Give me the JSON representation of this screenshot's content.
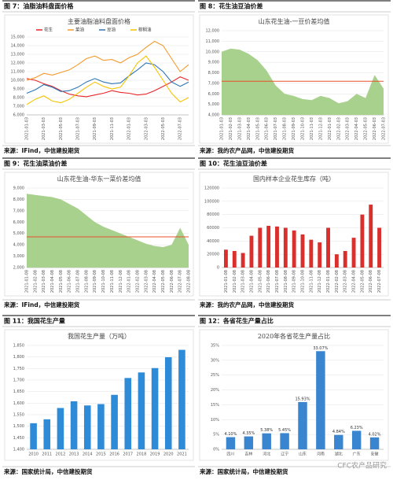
{
  "figures": [
    {
      "heading": "图 7：油脂油料盘面价格",
      "source": "来源：IFind，中信建投期货"
    },
    {
      "heading": "图 8：花生油豆油价差",
      "source": "来源：我的农产品网，中信建投期货"
    },
    {
      "heading": "图 9：花生油菜油价差",
      "source": "来源：IFind，中信建投期货"
    },
    {
      "heading": "图 10：花生油豆油价差",
      "source": "来源：我的农产品网，中信建投期货"
    },
    {
      "heading": "图 11：我国花生产量",
      "source": "来源：国家统计局，中信建投期货"
    },
    {
      "heading": "图 12：各省花生产量占比",
      "source": "来源：国家统计局，中信建投期货"
    }
  ],
  "watermark": "CFC农产品研究",
  "chart_data": [
    {
      "type": "line",
      "title": "主要油脂油料盘面价格",
      "categories": [
        "2021-01-03",
        null,
        "2021-03-03",
        null,
        "2021-05-03",
        null,
        "2021-07-03",
        null,
        "2021-09-03",
        null,
        "2021-11-03",
        null,
        "2022-01-03",
        null,
        "2022-03-03",
        null,
        "2022-05-03",
        null,
        "2022-07-03",
        null
      ],
      "series": [
        {
          "name": "花生",
          "color": "#e8262a",
          "values": [
            10200,
            10000,
            9600,
            9300,
            8800,
            8400,
            8200,
            8100,
            8300,
            8500,
            8800,
            8600,
            8500,
            8300,
            8400,
            8800,
            9300,
            9800,
            10400,
            10000
          ]
        },
        {
          "name": "菜油",
          "color": "#f39a2a",
          "values": [
            10000,
            10300,
            10800,
            10600,
            10900,
            11200,
            11800,
            12500,
            12800,
            12300,
            12400,
            12000,
            12600,
            13000,
            13800,
            14500,
            14000,
            12500,
            11000,
            11800
          ]
        },
        {
          "name": "豆油",
          "color": "#2e75b6",
          "values": [
            8500,
            8900,
            9500,
            9200,
            8700,
            8800,
            9200,
            9800,
            10200,
            9800,
            9600,
            9700,
            10500,
            11200,
            12000,
            11800,
            11000,
            9800,
            9300,
            9800
          ]
        },
        {
          "name": "棕榈油",
          "color": "#f5c400",
          "values": [
            7200,
            7800,
            8200,
            7600,
            7400,
            7800,
            8500,
            9200,
            9800,
            9300,
            9000,
            9200,
            10500,
            12000,
            12800,
            11500,
            10000,
            8500,
            7500,
            8000
          ]
        }
      ],
      "ylim": [
        6000,
        15000
      ],
      "yticks": [
        {
          "value": 6000,
          "label": "6,000"
        },
        {
          "value": 7000,
          "label": "7,000"
        },
        {
          "value": 8000,
          "label": "8,000"
        },
        {
          "value": 9000,
          "label": "9,000"
        },
        {
          "value": 10000,
          "label": "10,000"
        },
        {
          "value": 11000,
          "label": "11,000"
        },
        {
          "value": 12000,
          "label": "12,000"
        },
        {
          "value": 13000,
          "label": "13,000"
        },
        {
          "value": 14000,
          "label": "14,000"
        },
        {
          "value": 15000,
          "label": "15,000"
        }
      ],
      "grid": true,
      "legend": "top"
    },
    {
      "type": "area",
      "title": "山东花生油-一豆价差均值",
      "color": "#a9d18e",
      "categories": [
        "2021-01-03",
        "2021-02-03",
        "2021-03-03",
        "2021-04-03",
        "2021-05-03",
        "2021-06-03",
        "2021-07-03",
        "2021-08-03",
        "2021-09-03",
        "2021-10-03",
        "2021-11-03",
        "2021-12-03",
        "2022-01-03",
        "2022-02-03",
        "2022-03-03",
        "2022-04-03",
        "2022-05-03",
        "2022-06-03",
        "2022-07-03"
      ],
      "values": [
        10000,
        10300,
        10200,
        9800,
        9200,
        8200,
        6800,
        6000,
        5800,
        5500,
        5400,
        5800,
        5600,
        5100,
        5300,
        6000,
        5600,
        7800,
        6500
      ],
      "ylim": [
        4000,
        12000
      ],
      "yticks": [
        {
          "value": 4000,
          "label": "4,000"
        },
        {
          "value": 5000,
          "label": "5,000"
        },
        {
          "value": 6000,
          "label": "6,000"
        },
        {
          "value": 7000,
          "label": "7,000"
        },
        {
          "value": 8000,
          "label": "8,000"
        },
        {
          "value": 9000,
          "label": "9,000"
        },
        {
          "value": 10000,
          "label": "10,000"
        },
        {
          "value": 11000,
          "label": "11,000"
        },
        {
          "value": 12000,
          "label": "12,000"
        }
      ],
      "grid": true,
      "reference_line": 7200,
      "reference_color": "#e8502a"
    },
    {
      "type": "area",
      "title": "山东花生油-华东一菜价差均值",
      "color": "#a9d18e",
      "categories": [
        "2021-01-08",
        "2021-02-08",
        "2021-03-08",
        "2021-04-08",
        "2021-05-08",
        "2021-06-08",
        "2021-07-08",
        "2021-08-08",
        "2021-09-08",
        "2021-10-08",
        "2021-11-08",
        "2021-12-08",
        "2022-01-08",
        "2022-02-08",
        "2022-03-08",
        "2022-04-08",
        "2022-05-08",
        "2022-06-08",
        "2022-07-08",
        "2022-08-08"
      ],
      "values": [
        8500,
        8400,
        8300,
        8200,
        8000,
        7600,
        7200,
        6600,
        6000,
        5600,
        5300,
        5000,
        4700,
        4400,
        4100,
        3900,
        3800,
        4000,
        5500,
        4000
      ],
      "ylim": [
        2000,
        9000
      ],
      "yticks": [
        {
          "value": 2000,
          "label": "2,000"
        },
        {
          "value": 3000,
          "label": "3,000"
        },
        {
          "value": 4000,
          "label": "4,000"
        },
        {
          "value": 5000,
          "label": "5,000"
        },
        {
          "value": 6000,
          "label": "6,000"
        },
        {
          "value": 7000,
          "label": "7,000"
        },
        {
          "value": 8000,
          "label": "8,000"
        },
        {
          "value": 9000,
          "label": "9,000"
        }
      ],
      "grid": true,
      "reference_line": 4700,
      "reference_color": "#e8502a"
    },
    {
      "type": "bar",
      "title": "国内样本企业花生库存（吨）",
      "color": "#d9302e",
      "categories": [
        "2021-01-08",
        "2021-02-08",
        "2021-03-08",
        "2021-04-08",
        "2021-05-08",
        "2021-06-08",
        "2021-07-08",
        "2021-08-08",
        "2021-09-08",
        "2021-10-08",
        "2021-11-08",
        "2021-12-08",
        "2022-01-08",
        "2022-02-08",
        "2022-03-08",
        "2022-04-08",
        "2022-05-08",
        "2022-06-08",
        "2022-07-08"
      ],
      "values": [
        27000,
        25000,
        22000,
        48000,
        60000,
        63000,
        62000,
        60000,
        56000,
        50000,
        42000,
        38000,
        60000,
        20000,
        25000,
        45000,
        80000,
        95000,
        60000
      ],
      "ylim": [
        0,
        120000
      ],
      "yticks": [
        0,
        20000,
        40000,
        60000,
        80000,
        100000,
        120000
      ],
      "grid": true
    },
    {
      "type": "bar",
      "title": "我国花生产量（万吨）",
      "color": "#2e8bd8",
      "categories": [
        "2010",
        "2011",
        "2012",
        "2013",
        "2014",
        "2015",
        "2016",
        "2017",
        "2018",
        "2019",
        "2020",
        "2021"
      ],
      "values": [
        1513,
        1530,
        1579,
        1608,
        1590,
        1596,
        1636,
        1709,
        1733,
        1752,
        1799,
        1831
      ],
      "ylim": [
        1400,
        1850
      ],
      "yticks": [
        {
          "value": 1400,
          "label": "1,400"
        },
        {
          "value": 1450,
          "label": "1,450"
        },
        {
          "value": 1500,
          "label": "1,500"
        },
        {
          "value": 1550,
          "label": "1,550"
        },
        {
          "value": 1600,
          "label": "1,600"
        },
        {
          "value": 1650,
          "label": "1,650"
        },
        {
          "value": 1700,
          "label": "1,700"
        },
        {
          "value": 1750,
          "label": "1,750"
        },
        {
          "value": 1800,
          "label": "1,800"
        },
        {
          "value": 1850,
          "label": "1,850"
        }
      ],
      "grid": true
    },
    {
      "type": "bar",
      "title": "2020年各省花生产量占比",
      "color": "#3a85d0",
      "categories": [
        "四川",
        "吉林",
        "河北",
        "辽宁",
        "山东",
        "河南",
        "湖北",
        "广东",
        "安徽"
      ],
      "values": [
        4.1,
        4.35,
        5.38,
        5.45,
        15.93,
        33.07,
        4.84,
        6.23,
        4.02
      ],
      "value_labels": [
        "4.10%",
        "4.35%",
        "5.38%",
        "5.45%",
        "15.93%",
        "33.07%",
        "4.84%",
        "6.23%",
        "4.02%"
      ],
      "ylim": [
        0,
        35
      ],
      "yticks": [
        {
          "value": 0,
          "label": "0%"
        },
        {
          "value": 5,
          "label": "5%"
        },
        {
          "value": 10,
          "label": "10%"
        },
        {
          "value": 15,
          "label": "15%"
        },
        {
          "value": 20,
          "label": "20%"
        },
        {
          "value": 25,
          "label": "25%"
        },
        {
          "value": 30,
          "label": "30%"
        },
        {
          "value": 35,
          "label": "35%"
        }
      ],
      "grid": true
    }
  ]
}
